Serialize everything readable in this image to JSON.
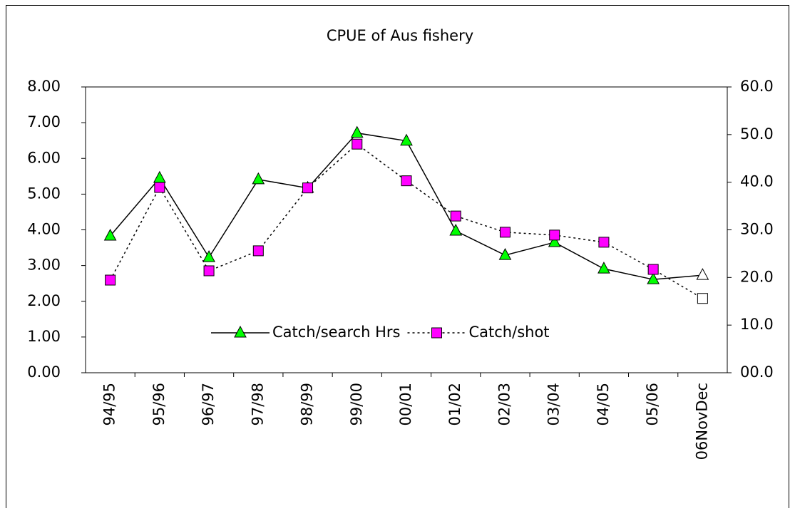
{
  "chart_data": {
    "type": "line",
    "title": "CPUE of Aus fishery",
    "categories": [
      "94/95",
      "95/96",
      "96/97",
      "97/98",
      "98/99",
      "99/00",
      "00/01",
      "01/02",
      "02/03",
      "03/04",
      "04/05",
      "05/06",
      "06NovDec"
    ],
    "series": [
      {
        "name": "Catch/search Hrs",
        "color": "#00ff00",
        "axis": "y",
        "marker": "triangle",
        "line": "solid",
        "values": [
          3.83,
          5.45,
          3.23,
          5.41,
          5.17,
          6.71,
          6.49,
          3.97,
          3.29,
          3.65,
          2.91,
          2.61,
          2.73
        ]
      },
      {
        "name": "Catch/shot",
        "color": "#ff00ff",
        "axis": "y2",
        "marker": "square",
        "line": "dotted",
        "values": [
          19.45,
          38.9,
          21.4,
          25.6,
          38.8,
          48.0,
          40.3,
          32.9,
          29.5,
          28.9,
          27.4,
          21.7,
          15.6
        ]
      }
    ],
    "last_point_hollow": true,
    "ylim": [
      0,
      8
    ],
    "yticks": [
      {
        "value": 0,
        "label": "0.00"
      },
      {
        "value": 1,
        "label": "1.00"
      },
      {
        "value": 2,
        "label": "2.00"
      },
      {
        "value": 3,
        "label": "3.00"
      },
      {
        "value": 4,
        "label": "4.00"
      },
      {
        "value": 5,
        "label": "5.00"
      },
      {
        "value": 6,
        "label": "6.00"
      },
      {
        "value": 7,
        "label": "7.00"
      },
      {
        "value": 8,
        "label": "8.00"
      }
    ],
    "y2lim": [
      0,
      60
    ],
    "y2ticks": [
      {
        "value": 0,
        "label": "00.0"
      },
      {
        "value": 10,
        "label": "10.0"
      },
      {
        "value": 20,
        "label": "20.0"
      },
      {
        "value": 30,
        "label": "30.0"
      },
      {
        "value": 40,
        "label": "40.0"
      },
      {
        "value": 50,
        "label": "50.0"
      },
      {
        "value": 60,
        "label": "60.0"
      }
    ],
    "grid": false
  }
}
